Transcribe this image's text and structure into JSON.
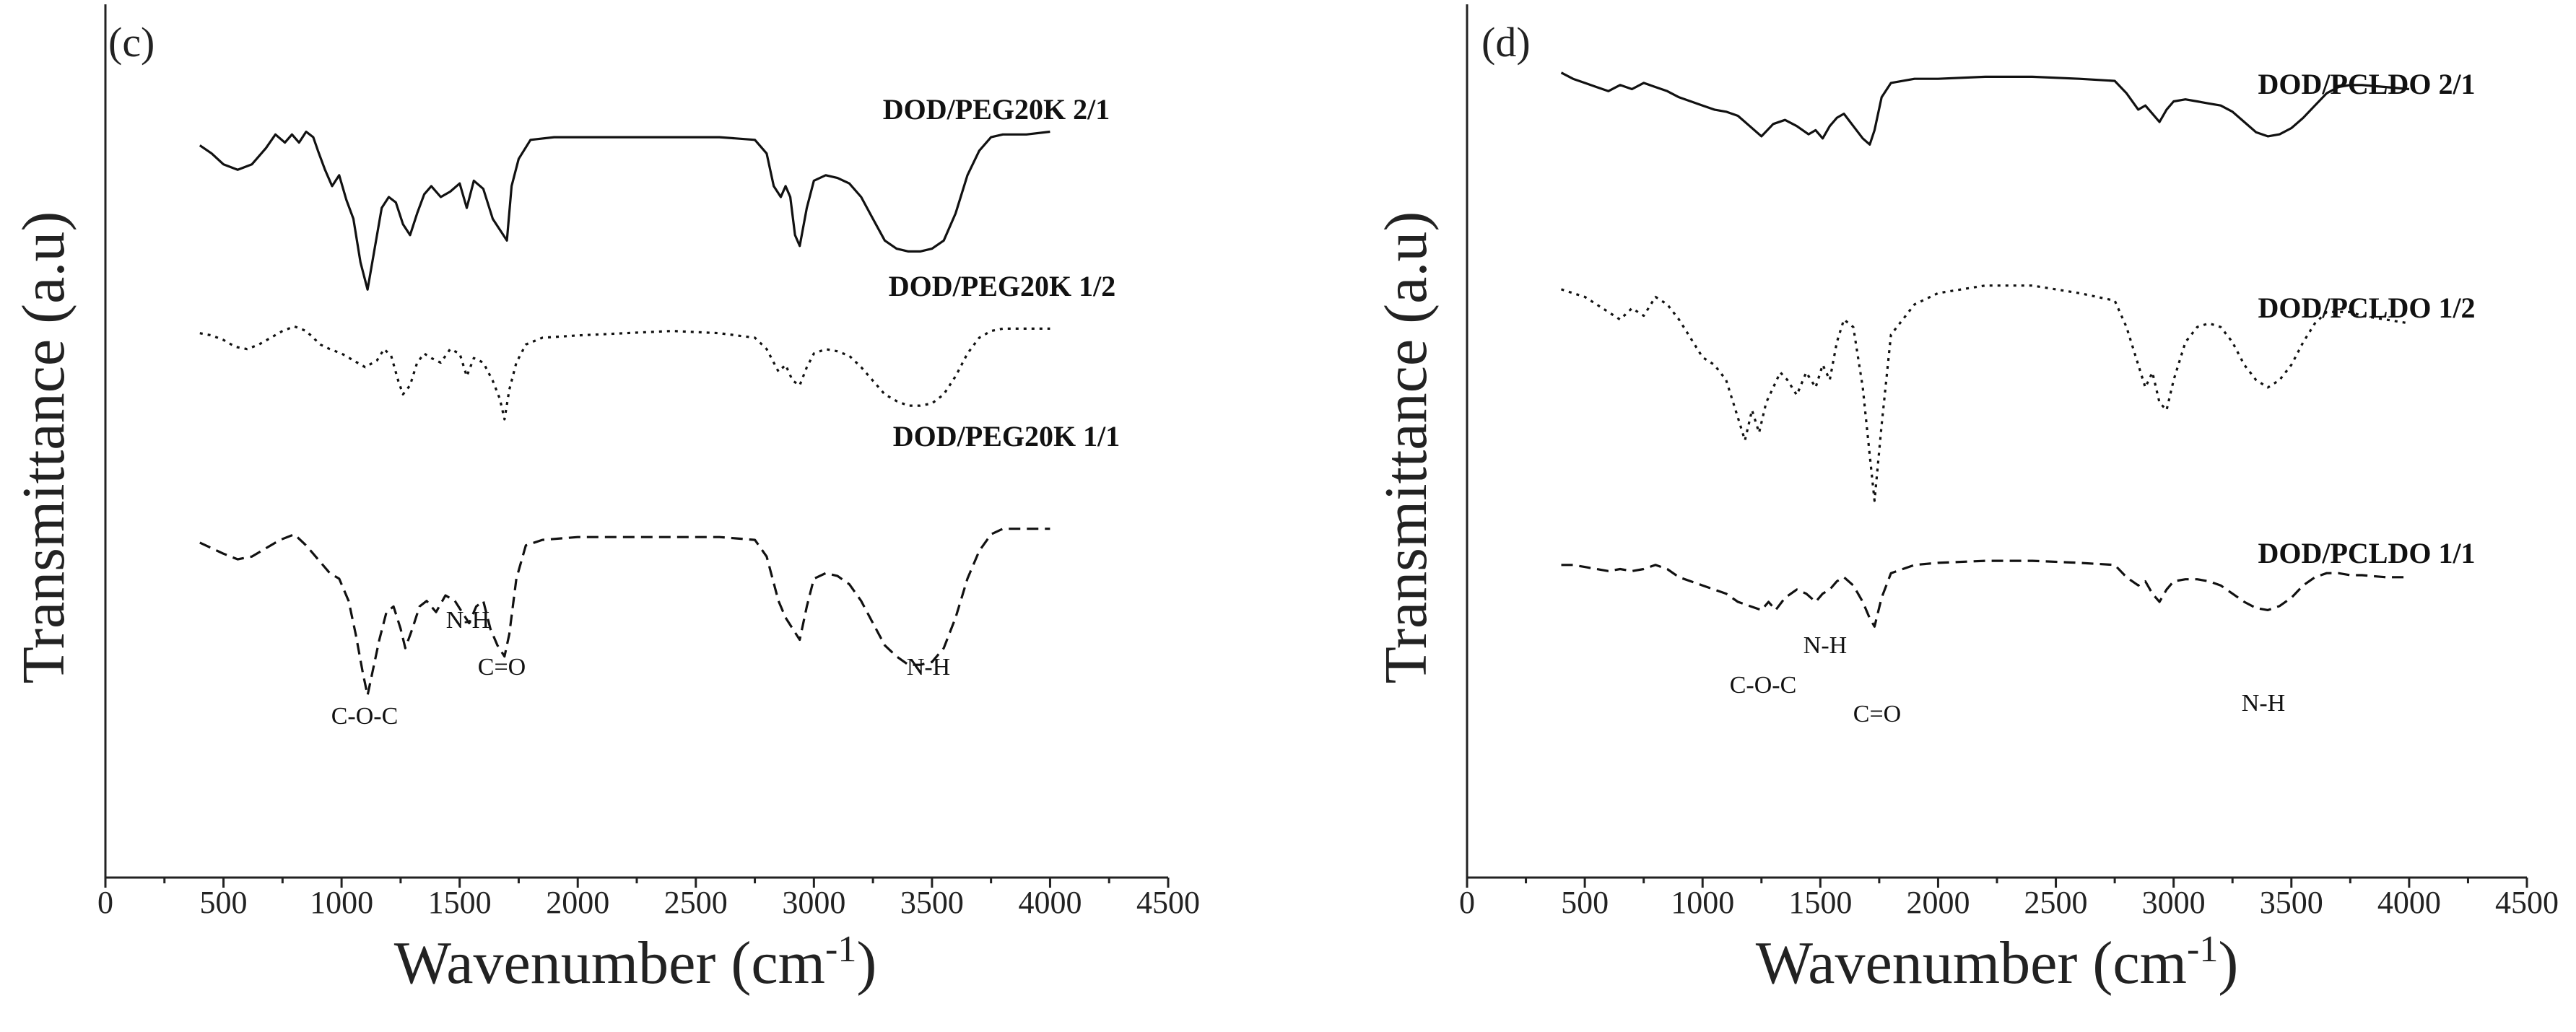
{
  "chart_data": [
    {
      "type": "line",
      "panel_label": "(c)",
      "xlabel": "Wavenumber (cm",
      "xlabel_sup": "-1",
      "xlabel_close": ")",
      "ylabel": "Transmittance (a.u)",
      "xlim": [
        0,
        4500
      ],
      "xticks": [
        0,
        500,
        1000,
        1500,
        2000,
        2500,
        3000,
        3500,
        4000,
        4500
      ],
      "series": [
        {
          "name": "DOD/PEG20K 2/1",
          "style": "solid",
          "x": [
            400,
            450,
            500,
            560,
            620,
            680,
            720,
            760,
            790,
            820,
            850,
            880,
            900,
            930,
            960,
            990,
            1020,
            1050,
            1080,
            1110,
            1140,
            1170,
            1200,
            1230,
            1260,
            1290,
            1320,
            1350,
            1380,
            1420,
            1460,
            1500,
            1530,
            1560,
            1600,
            1640,
            1670,
            1700,
            1720,
            1750,
            1800,
            1900,
            2000,
            2200,
            2400,
            2600,
            2750,
            2800,
            2830,
            2860,
            2880,
            2900,
            2920,
            2940,
            2970,
            3000,
            3050,
            3100,
            3150,
            3200,
            3250,
            3300,
            3350,
            3400,
            3450,
            3500,
            3550,
            3600,
            3650,
            3700,
            3750,
            3800,
            3900,
            4000
          ],
          "y": [
            93,
            90,
            86,
            84,
            86,
            92,
            97,
            94,
            97,
            94,
            98,
            96,
            91,
            84,
            78,
            82,
            73,
            66,
            50,
            40,
            55,
            70,
            74,
            72,
            64,
            60,
            68,
            75,
            78,
            74,
            76,
            79,
            70,
            80,
            77,
            66,
            62,
            58,
            78,
            88,
            95,
            96,
            96,
            96,
            96,
            96,
            95,
            90,
            78,
            74,
            78,
            74,
            60,
            56,
            70,
            80,
            82,
            81,
            79,
            74,
            66,
            58,
            55,
            54,
            54,
            55,
            58,
            68,
            82,
            91,
            96,
            97,
            97,
            98
          ]
        },
        {
          "name": "DOD/PEG20K 1/2",
          "style": "dotted",
          "x": [
            400,
            450,
            500,
            550,
            600,
            650,
            700,
            750,
            800,
            850,
            880,
            910,
            950,
            1000,
            1050,
            1100,
            1150,
            1180,
            1210,
            1240,
            1260,
            1290,
            1320,
            1350,
            1380,
            1420,
            1460,
            1500,
            1530,
            1560,
            1600,
            1640,
            1670,
            1690,
            1710,
            1740,
            1780,
            1850,
            2000,
            2200,
            2400,
            2600,
            2750,
            2800,
            2850,
            2880,
            2910,
            2940,
            2970,
            3000,
            3050,
            3100,
            3150,
            3200,
            3250,
            3300,
            3350,
            3400,
            3450,
            3500,
            3550,
            3600,
            3650,
            3700,
            3750,
            3800,
            3900,
            4000
          ],
          "y": [
            95,
            94,
            92,
            89,
            88,
            90,
            93,
            96,
            98,
            96,
            93,
            90,
            88,
            86,
            83,
            80,
            83,
            88,
            85,
            74,
            68,
            72,
            82,
            86,
            84,
            82,
            88,
            86,
            76,
            84,
            82,
            74,
            66,
            57,
            70,
            82,
            90,
            93,
            94,
            95,
            96,
            95,
            93,
            88,
            78,
            81,
            74,
            72,
            80,
            86,
            88,
            87,
            85,
            80,
            74,
            68,
            65,
            63,
            63,
            64,
            68,
            76,
            86,
            93,
            96,
            97,
            97,
            97
          ]
        },
        {
          "name": "DOD/PEG20K 1/1",
          "style": "dashed",
          "x": [
            400,
            450,
            500,
            560,
            620,
            680,
            740,
            800,
            850,
            880,
            910,
            950,
            990,
            1030,
            1060,
            1090,
            1110,
            1130,
            1160,
            1190,
            1220,
            1250,
            1270,
            1300,
            1330,
            1360,
            1400,
            1440,
            1480,
            1510,
            1540,
            1570,
            1600,
            1630,
            1660,
            1690,
            1710,
            1740,
            1780,
            1850,
            2000,
            2200,
            2400,
            2600,
            2750,
            2800,
            2850,
            2880,
            2910,
            2940,
            2970,
            3000,
            3050,
            3100,
            3150,
            3200,
            3250,
            3300,
            3350,
            3400,
            3450,
            3500,
            3550,
            3600,
            3650,
            3700,
            3750,
            3800,
            3900,
            4000
          ],
          "y": [
            93,
            91,
            89,
            87,
            88,
            91,
            94,
            96,
            92,
            89,
            86,
            82,
            80,
            72,
            60,
            46,
            38,
            46,
            58,
            68,
            70,
            62,
            55,
            62,
            70,
            72,
            68,
            74,
            72,
            68,
            64,
            70,
            72,
            62,
            56,
            52,
            60,
            80,
            92,
            94,
            95,
            95,
            95,
            95,
            94,
            88,
            72,
            66,
            62,
            58,
            70,
            80,
            82,
            81,
            78,
            72,
            64,
            56,
            52,
            49,
            49,
            50,
            55,
            66,
            80,
            90,
            96,
            98,
            98,
            98
          ]
        }
      ],
      "series_labels": [
        "DOD/PEG20K 2/1",
        "DOD/PEG20K 1/2",
        "DOD/PEG20K 1/1"
      ],
      "annotations": [
        "N-H",
        "C=O",
        "C-O-C",
        "N-H"
      ]
    },
    {
      "type": "line",
      "panel_label": "(d)",
      "xlabel": "Wavenumber (cm",
      "xlabel_sup": "-1",
      "xlabel_close": ")",
      "ylabel": "Transmittance (a.u)",
      "xlim": [
        0,
        4500
      ],
      "xticks": [
        0,
        500,
        1000,
        1500,
        2000,
        2500,
        3000,
        3500,
        4000,
        4500
      ],
      "series": [
        {
          "name": "DOD/PCLDO 2/1",
          "style": "solid",
          "x": [
            400,
            450,
            500,
            550,
            600,
            650,
            700,
            750,
            800,
            850,
            900,
            950,
            1000,
            1050,
            1100,
            1150,
            1200,
            1250,
            1300,
            1350,
            1400,
            1450,
            1480,
            1510,
            1540,
            1570,
            1600,
            1640,
            1680,
            1710,
            1730,
            1760,
            1800,
            1900,
            2000,
            2200,
            2400,
            2600,
            2750,
            2800,
            2850,
            2880,
            2910,
            2940,
            2970,
            3000,
            3050,
            3100,
            3150,
            3200,
            3250,
            3300,
            3350,
            3400,
            3450,
            3500,
            3550,
            3600,
            3650,
            3700,
            3750,
            3800,
            3900,
            4000
          ],
          "y": [
            98,
            95,
            93,
            91,
            89,
            92,
            90,
            93,
            91,
            89,
            86,
            84,
            82,
            80,
            79,
            77,
            72,
            67,
            73,
            75,
            72,
            68,
            70,
            66,
            72,
            76,
            78,
            72,
            66,
            63,
            70,
            86,
            93,
            95,
            95,
            96,
            96,
            95,
            94,
            88,
            80,
            82,
            78,
            74,
            80,
            84,
            85,
            84,
            83,
            82,
            79,
            74,
            69,
            67,
            68,
            71,
            76,
            82,
            88,
            91,
            92,
            92,
            91,
            90
          ]
        },
        {
          "name": "DOD/PCLDO 1/2",
          "style": "dotted",
          "x": [
            400,
            450,
            500,
            550,
            600,
            650,
            700,
            750,
            800,
            850,
            900,
            950,
            1000,
            1050,
            1100,
            1150,
            1180,
            1210,
            1240,
            1270,
            1300,
            1330,
            1360,
            1400,
            1440,
            1480,
            1510,
            1540,
            1570,
            1600,
            1640,
            1680,
            1710,
            1730,
            1760,
            1800,
            1900,
            2000,
            2200,
            2400,
            2600,
            2750,
            2800,
            2850,
            2880,
            2910,
            2940,
            2970,
            3000,
            3050,
            3100,
            3150,
            3200,
            3250,
            3300,
            3350,
            3400,
            3450,
            3500,
            3550,
            3600,
            3650,
            3700,
            3750,
            3800,
            3900,
            4000
          ],
          "y": [
            96,
            95,
            94,
            92,
            90,
            88,
            91,
            89,
            94,
            92,
            88,
            83,
            78,
            76,
            72,
            62,
            56,
            64,
            58,
            66,
            70,
            74,
            72,
            68,
            74,
            70,
            76,
            72,
            82,
            88,
            86,
            70,
            52,
            40,
            60,
            84,
            92,
            95,
            97,
            97,
            95,
            93,
            86,
            76,
            70,
            74,
            66,
            64,
            72,
            82,
            86,
            87,
            86,
            82,
            76,
            72,
            70,
            72,
            76,
            82,
            87,
            90,
            90,
            90,
            89,
            88,
            87
          ]
        },
        {
          "name": "DOD/PCLDO 1/1",
          "style": "dashed",
          "x": [
            400,
            450,
            500,
            550,
            600,
            650,
            700,
            750,
            800,
            850,
            900,
            950,
            1000,
            1050,
            1100,
            1150,
            1200,
            1250,
            1280,
            1310,
            1350,
            1400,
            1440,
            1480,
            1510,
            1540,
            1570,
            1600,
            1640,
            1680,
            1710,
            1730,
            1760,
            1800,
            1900,
            2000,
            2200,
            2400,
            2600,
            2750,
            2800,
            2850,
            2880,
            2910,
            2940,
            2970,
            3000,
            3050,
            3100,
            3150,
            3200,
            3250,
            3300,
            3350,
            3400,
            3450,
            3500,
            3550,
            3600,
            3650,
            3700,
            3750,
            3800,
            3900,
            4000
          ],
          "y": [
            92,
            92,
            91,
            90,
            89,
            90,
            89,
            90,
            92,
            90,
            86,
            84,
            82,
            80,
            78,
            74,
            72,
            70,
            74,
            70,
            76,
            80,
            78,
            74,
            78,
            80,
            84,
            86,
            82,
            74,
            66,
            62,
            76,
            88,
            92,
            93,
            94,
            94,
            93,
            92,
            86,
            82,
            84,
            78,
            74,
            80,
            84,
            85,
            85,
            84,
            82,
            78,
            74,
            71,
            70,
            72,
            76,
            82,
            86,
            88,
            88,
            87,
            87,
            86,
            86
          ]
        }
      ],
      "series_labels": [
        "DOD/PCLDO 2/1",
        "DOD/PCLDO 1/2",
        "DOD/PCLDO 1/1"
      ],
      "annotations": [
        "C-O-C",
        "N-H",
        "C=O",
        "N-H"
      ]
    }
  ]
}
